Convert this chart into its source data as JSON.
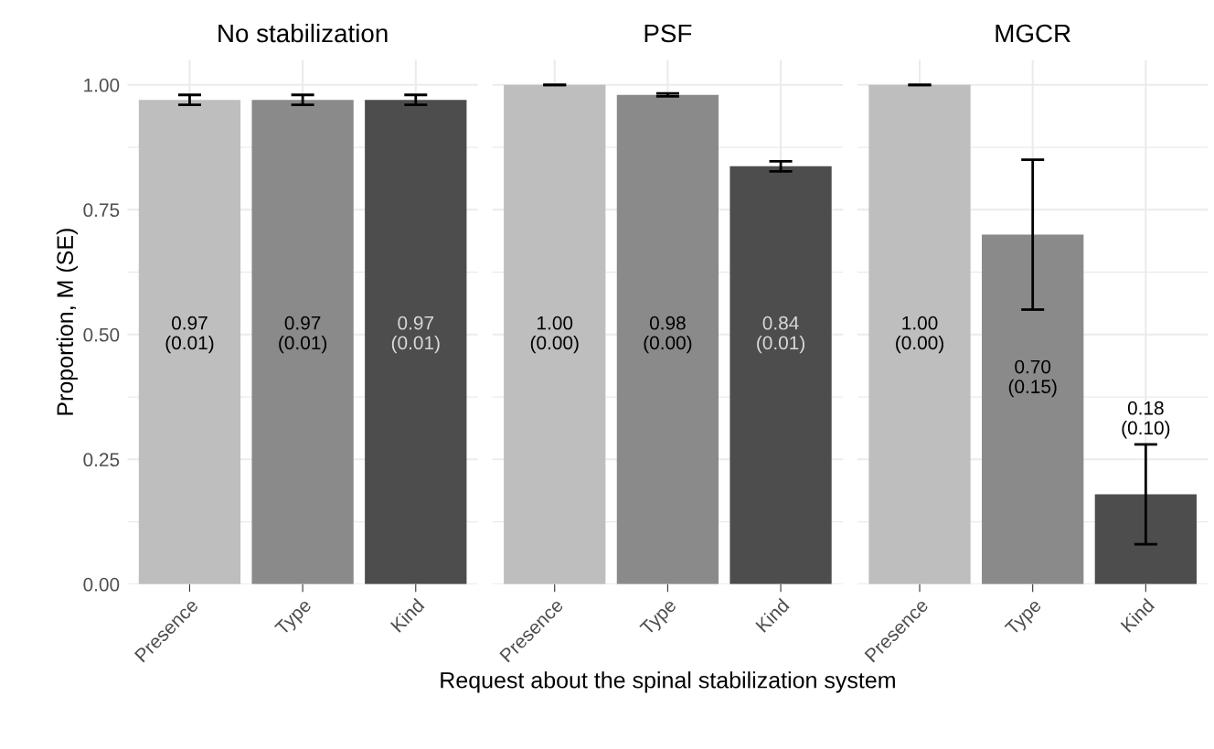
{
  "chart_data": [
    {
      "type": "bar",
      "title": "No stabilization",
      "ylabel": "Proportion, M (SE)",
      "categories": [
        "Presence",
        "Type",
        "Kind"
      ],
      "values": [
        0.97,
        0.97,
        0.97
      ],
      "errors": [
        0.01,
        0.01,
        0.01
      ],
      "colors": [
        "#bebebe",
        "#8a8a8a",
        "#4d4d4d"
      ],
      "value_labels": [
        "0.97\n(0.01)",
        "0.97\n(0.01)",
        "0.97\n(0.01)"
      ],
      "ylim": [
        0,
        1.05
      ],
      "yticks": [
        {
          "value": 0,
          "label": "0.00"
        },
        {
          "value": 0.25,
          "label": "0.25"
        },
        {
          "value": 0.5,
          "label": "0.50"
        },
        {
          "value": 0.75,
          "label": "0.75"
        },
        {
          "value": 1,
          "label": "1.00"
        }
      ],
      "grid": true
    },
    {
      "type": "bar",
      "title": "PSF",
      "xlabel": "Request about the spinal stabilization system",
      "categories": [
        "Presence",
        "Type",
        "Kind"
      ],
      "values": [
        1.0,
        0.98,
        0.837
      ],
      "errors": [
        0.0,
        0.003,
        0.01
      ],
      "colors": [
        "#bebebe",
        "#8a8a8a",
        "#4d4d4d"
      ],
      "value_labels": [
        "1.00\n(0.00)",
        "0.98\n(0.00)",
        "0.84\n(0.01)"
      ],
      "ylim": [
        0,
        1.05
      ],
      "yticks": [
        {
          "value": 0,
          "label": null
        },
        {
          "value": 0.25,
          "label": null
        },
        {
          "value": 0.5,
          "label": null
        },
        {
          "value": 0.75,
          "label": null
        },
        {
          "value": 1,
          "label": null
        }
      ],
      "grid": true,
      "tick_labels": "x"
    },
    {
      "type": "bar",
      "title": "MGCR",
      "categories": [
        "Presence",
        "Type",
        "Kind"
      ],
      "values": [
        1.0,
        0.7,
        0.18
      ],
      "errors": [
        0.0,
        0.15,
        0.1
      ],
      "colors": [
        "#bebebe",
        "#8a8a8a",
        "#4d4d4d"
      ],
      "value_labels": [
        "1.00\n(0.00)",
        "0.70\n(0.15)",
        "0.18\n(0.10)"
      ],
      "ylim": [
        0,
        1.05
      ],
      "yticks": [
        {
          "value": 0,
          "label": null
        },
        {
          "value": 0.25,
          "label": null
        },
        {
          "value": 0.5,
          "label": null
        },
        {
          "value": 0.75,
          "label": null
        },
        {
          "value": 1,
          "label": null
        }
      ],
      "grid": true,
      "tick_labels": "x"
    }
  ]
}
